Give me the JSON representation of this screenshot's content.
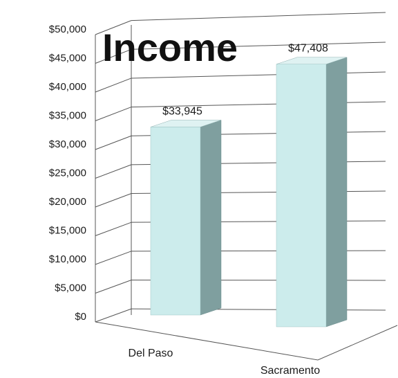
{
  "chart_data": {
    "type": "bar",
    "title": "Income",
    "categories": [
      "Del Paso",
      "Sacramento"
    ],
    "values": [
      33945,
      47408
    ],
    "data_labels": [
      "$33,945",
      "$47,408"
    ],
    "yticks": [
      "$0",
      "$5,000",
      "$10,000",
      "$15,000",
      "$20,000",
      "$25,000",
      "$30,000",
      "$35,000",
      "$40,000",
      "$45,000",
      "$50,000"
    ],
    "ylim": [
      0,
      50000
    ],
    "grid": true,
    "style": "3d-column",
    "colors": {
      "bar_front": "#ccecec",
      "bar_side": "#7f9f9f",
      "bar_top": "#dff2f2",
      "grid": "#555555"
    }
  }
}
